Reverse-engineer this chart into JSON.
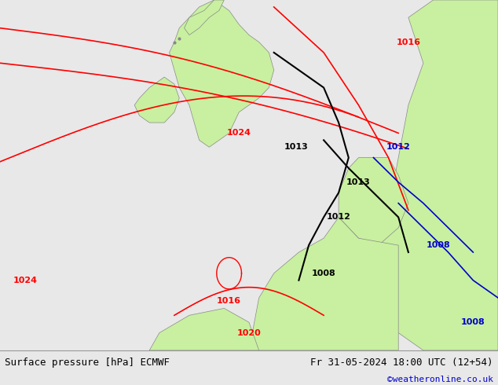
{
  "title_left": "Surface pressure [hPa] ECMWF",
  "title_right": "Fr 31-05-2024 18:00 UTC (12+54)",
  "watermark": "©weatheronline.co.uk",
  "bg_color": "#e8e8e8",
  "land_color": "#c8f0a0",
  "water_color": "#e8e8e8",
  "fig_width": 6.34,
  "fig_height": 4.9,
  "dpi": 100,
  "bottom_bar_color": "#f0f0f0",
  "isobars_red": [
    {
      "label": "1016",
      "color": "#ff0000"
    },
    {
      "label": "1020",
      "color": "#ff0000"
    },
    {
      "label": "1024",
      "color": "#ff0000"
    },
    {
      "label": "1024",
      "color": "#ff0000"
    }
  ],
  "isobars_black": [
    {
      "label": "1013",
      "color": "#000000"
    },
    {
      "label": "1013",
      "color": "#000000"
    },
    {
      "label": "1012",
      "color": "#000000"
    },
    {
      "label": "1008",
      "color": "#000000"
    }
  ],
  "isobars_blue": [
    {
      "label": "1012",
      "color": "#0000ff"
    },
    {
      "label": "1008",
      "color": "#0000ff"
    },
    {
      "label": "1008",
      "color": "#0000ff"
    },
    {
      "label": "1016",
      "color": "#ff0000"
    }
  ]
}
